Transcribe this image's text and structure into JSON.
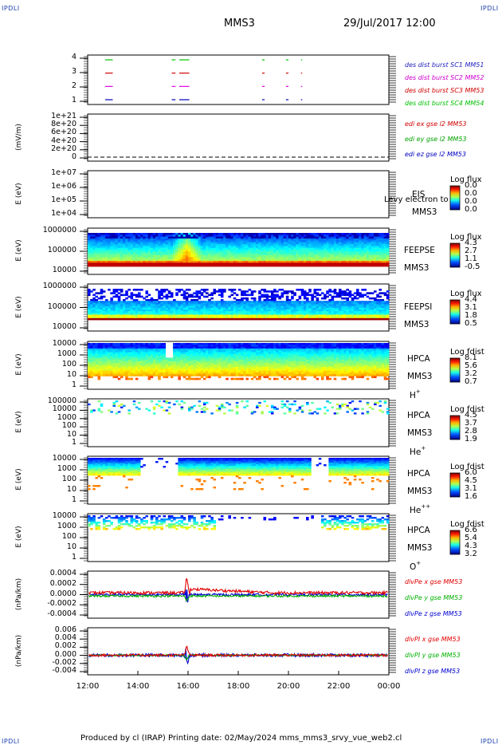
{
  "corner_labels": {
    "top_left": "IPDLI",
    "top_right": "IPDLI",
    "bottom_left": "IPDLI",
    "bottom_right": "IPDLI"
  },
  "header": {
    "spacecraft": "MMS3",
    "datetime": "29/Jul/2017 12:00"
  },
  "footer": {
    "text": "Produced by cl (IRAP)   Printing date: 02/May/2024   mms_mms3_srvy_vue_web2.cl"
  },
  "time_axis": {
    "ticks": [
      "12:00",
      "14:00",
      "16:00",
      "18:00",
      "20:00",
      "22:00",
      "00:00"
    ],
    "range_hours": [
      12,
      24
    ]
  },
  "chart_data": [
    {
      "type": "scatter",
      "panel": "burst",
      "yticks": [
        "4",
        "3",
        "2",
        "1"
      ],
      "series": [
        {
          "name": "des dist burst SC1 MM51",
          "color": "#00c000",
          "y": 4,
          "segments": [
            [
              12.7,
              13.0
            ],
            [
              15.35,
              15.5
            ],
            [
              15.65,
              16.05
            ],
            [
              18.95,
              19.05
            ],
            [
              19.9,
              20.0
            ],
            [
              20.5,
              20.55
            ]
          ]
        },
        {
          "name": "des dist burst SC2 MM52",
          "color": "#d00000",
          "y": 3,
          "segments": [
            [
              12.7,
              13.0
            ],
            [
              15.35,
              15.5
            ],
            [
              15.65,
              16.05
            ],
            [
              18.95,
              19.05
            ],
            [
              19.9,
              20.0
            ],
            [
              20.5,
              20.55
            ]
          ]
        },
        {
          "name": "des dist burst SC3 MM53",
          "color": "#e000e0",
          "y": 2,
          "segments": [
            [
              12.7,
              13.0
            ],
            [
              15.35,
              15.5
            ],
            [
              15.65,
              16.05
            ],
            [
              18.95,
              19.05
            ],
            [
              19.9,
              20.0
            ],
            [
              20.5,
              20.55
            ]
          ]
        },
        {
          "name": "des dist burst SC4 MM54",
          "color": "#0000c0",
          "y": 1,
          "segments": [
            [
              12.7,
              13.0
            ],
            [
              15.35,
              15.5
            ],
            [
              15.65,
              16.05
            ],
            [
              18.95,
              19.05
            ],
            [
              19.9,
              20.0
            ],
            [
              20.5,
              20.55
            ]
          ]
        }
      ],
      "legend_colors": [
        "#1f1fc0",
        "#d000d0",
        "#d00000",
        "#00c000"
      ]
    },
    {
      "type": "line",
      "panel": "edi",
      "ylabel": "(mV/m)",
      "yticks": [
        "1e+21",
        "8e+20",
        "6e+20",
        "4e+20",
        "2e+20",
        "0"
      ],
      "series": [
        {
          "name": "edi ex gse l2 MM53",
          "color": "#d00000"
        },
        {
          "name": "edi ey gse l2 MM53",
          "color": "#00a000"
        },
        {
          "name": "edi ez gse l2 MM53",
          "color": "#0000c0"
        }
      ]
    },
    {
      "type": "heatmap",
      "panel": "eis",
      "ylabel": "E (eV)",
      "yticks": [
        "1e+07",
        "1e+06",
        "1e+05",
        "1e+04"
      ],
      "instrument": [
        "EIS",
        "MMS3"
      ],
      "overlay_text": "Levy electron to",
      "colorbar": {
        "title": "Log flux",
        "values": [
          "0.0",
          "0.0",
          "0.0",
          "0.0"
        ]
      }
    },
    {
      "type": "heatmap",
      "panel": "feepse",
      "ylabel": "E (eV)",
      "yticks": [
        "1000000",
        "100000",
        "10000"
      ],
      "instrument": [
        "FEEPSE",
        "MMS3"
      ],
      "colorbar": {
        "title": "Log flux",
        "values": [
          "4.3",
          "2.7",
          "1.1",
          "-0.5"
        ]
      }
    },
    {
      "type": "heatmap",
      "panel": "feepsi",
      "ylabel": "E (eV)",
      "yticks": [
        "1000000",
        "100000",
        "10000"
      ],
      "instrument": [
        "FEEPSI",
        "MMS3"
      ],
      "colorbar": {
        "title": "Log flux",
        "values": [
          "4.4",
          "3.1",
          "1.8",
          "0.5"
        ]
      }
    },
    {
      "type": "heatmap",
      "panel": "hpca_h",
      "ylabel": "E (eV)",
      "yticks": [
        "10000",
        "1000",
        "100",
        "10",
        "1"
      ],
      "instrument": [
        "HPCA",
        "MMS3",
        "H",
        "+"
      ],
      "colorbar": {
        "title": "Log fdist",
        "values": [
          "8.1",
          "5.6",
          "3.2",
          "0.7"
        ]
      }
    },
    {
      "type": "heatmap",
      "panel": "hpca_he1",
      "ylabel": "E (eV)",
      "yticks": [
        "100000",
        "10000",
        "1000",
        "100",
        "10",
        "1"
      ],
      "instrument": [
        "HPCA",
        "MMS3",
        "He",
        "+"
      ],
      "colorbar": {
        "title": "Log fdist",
        "values": [
          "4.5",
          "3.7",
          "2.8",
          "1.9"
        ]
      }
    },
    {
      "type": "heatmap",
      "panel": "hpca_he2",
      "ylabel": "E (eV)",
      "yticks": [
        "10000",
        "1000",
        "100",
        "10",
        "1"
      ],
      "instrument": [
        "HPCA",
        "MMS3",
        "He",
        "++"
      ],
      "colorbar": {
        "title": "Log fdist",
        "values": [
          "6.0",
          "4.5",
          "3.1",
          "1.6"
        ]
      }
    },
    {
      "type": "heatmap",
      "panel": "hpca_o",
      "ylabel": "E (eV)",
      "yticks": [
        "10000",
        "1000",
        "100",
        "10",
        "1"
      ],
      "instrument": [
        "HPCA",
        "MMS3",
        "O",
        "+"
      ],
      "colorbar": {
        "title": "Log fdist",
        "values": [
          "6.6",
          "5.4",
          "4.3",
          "3.2"
        ]
      }
    },
    {
      "type": "line",
      "panel": "divpe",
      "ylabel": "(nPa/km)",
      "yticks": [
        "0.0004",
        "0.0002",
        "0.0000",
        "-0.0002",
        "-0.0004"
      ],
      "ylim": [
        -0.0005,
        0.0005
      ],
      "series": [
        {
          "name": "dlvPe x gse MM53",
          "color": "#e00000"
        },
        {
          "name": "dlvPe y gse MM53",
          "color": "#00b000"
        },
        {
          "name": "dlvPe z gse MM53",
          "color": "#0000d0"
        }
      ]
    },
    {
      "type": "line",
      "panel": "divpi",
      "ylabel": "(nPa/km)",
      "yticks": [
        "0.006",
        "0.004",
        "0.002",
        "0.000",
        "-0.002",
        "-0.004"
      ],
      "ylim": [
        -0.005,
        0.007
      ],
      "series": [
        {
          "name": "dlvPI x gse MM53",
          "color": "#e00000"
        },
        {
          "name": "dlvPI y gse MM53",
          "color": "#00b000"
        },
        {
          "name": "dlvPI z gse MM53",
          "color": "#0000d0"
        }
      ]
    }
  ]
}
